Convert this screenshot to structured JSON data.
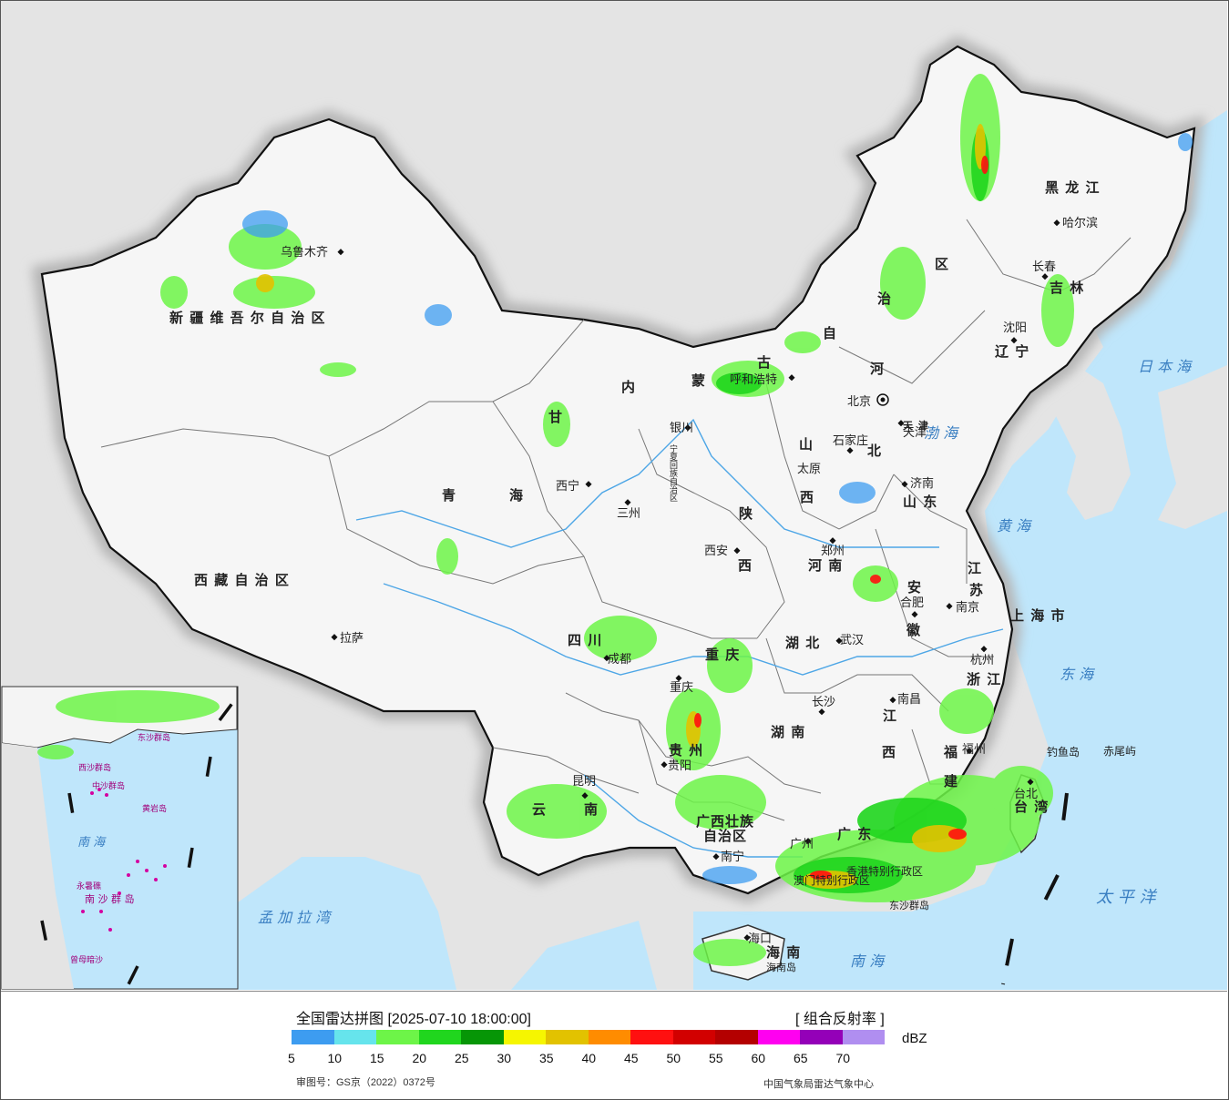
{
  "map": {
    "title": "全国雷达拼图",
    "timestamp": "[2025-07-10 18:00:00]",
    "product": "[ 组合反射率 ]",
    "unit": "dBZ",
    "approval": "审图号：GS京（2022）0372号",
    "agency": "中国气象局雷达气象中心",
    "legend": {
      "colors": [
        "#3d9cf0",
        "#66e4ec",
        "#6df548",
        "#20d61e",
        "#069606",
        "#f6f600",
        "#e2c200",
        "#ff8c00",
        "#ff1010",
        "#d20000",
        "#b40000",
        "#ff00f0",
        "#9400b8",
        "#b08ef0"
      ],
      "ticks": [
        "5",
        "10",
        "15",
        "20",
        "25",
        "30",
        "35",
        "40",
        "45",
        "50",
        "55",
        "60",
        "65",
        "70"
      ]
    },
    "region_labels": {
      "xinjiang": "新 疆 维 吾 尔 自 治 区",
      "xizang": "西 藏 自 治 区",
      "qinghai_1": "青",
      "qinghai_2": "海",
      "gansu": "甘",
      "ningxia": "宁夏回族自治区",
      "neimenggu_1": "内",
      "neimenggu_2": "蒙",
      "neimenggu_3": "古",
      "neimenggu_4": "自",
      "neimenggu_5": "治",
      "neimenggu_6": "区",
      "heilongjiang": "黑 龙 江",
      "jilin": "吉 林",
      "liaoning": "辽 宁",
      "hebei_1": "河",
      "hebei_2": "北",
      "shanxi_1": "山",
      "shanxi_2": "西",
      "shaanxi_1": "陕",
      "shaanxi_2": "西",
      "shandong": "山 东",
      "henan": "河 南",
      "jiangsu_1": "江",
      "jiangsu_2": "苏",
      "anhui_1": "安",
      "anhui_2": "徽",
      "shanghai": "上 海 市",
      "zhejiang": "浙 江",
      "hubei": "湖 北",
      "sichuan": "四 川",
      "chongqing": "重 庆",
      "guizhou": "贵 州",
      "hunan": "湖 南",
      "jiangxi_1": "江",
      "jiangxi_2": "西",
      "fujian_1": "福",
      "fujian_2": "建",
      "yunnan_1": "云",
      "yunnan_2": "南",
      "guangxi_1": "广西壮族",
      "guangxi_2": "自治区",
      "guangdong": "广 东",
      "taiwan": "台 湾",
      "hainan": "海 南",
      "hongkong": "香港特别行政区",
      "macau": "澳门特别行政区",
      "tianjin": "天 津",
      "gansu_city": "甘",
      "sanzhou": "三 州"
    },
    "cities": {
      "urumqi": "乌鲁木齐",
      "lhasa": "拉萨",
      "xining": "西宁",
      "lanzhou": "三州",
      "yinchuan": "银川",
      "huhehaote": "呼和浩特",
      "beijing": "北京",
      "tianjin": "天津",
      "shijiazhuang": "石家庄",
      "taiyuan": "太原",
      "jinan": "济南",
      "zhengzhou": "郑州",
      "xian": "西安",
      "harbin": "哈尔滨",
      "changchun": "长春",
      "shenyang": "沈阳",
      "nanjing": "南京",
      "hefei": "合肥",
      "wuhan": "武汉",
      "hangzhou": "杭州",
      "chengdu": "成都",
      "chongqing": "重庆",
      "changsha": "长沙",
      "nanchang": "南昌",
      "guiyang": "贵阳",
      "fuzhou": "福州",
      "kunming": "昆明",
      "nanning": "南宁",
      "guangzhou": "广州",
      "taibei": "台北",
      "haikou": "海口",
      "haikou_island": "海南岛",
      "diaoyu": "钓鱼岛",
      "chiwei": "赤尾屿",
      "dongsha": "东沙群岛"
    },
    "seas": {
      "bohai": "渤 海",
      "huanghai": "黄 海",
      "donghai": "东 海",
      "nanhai": "南 海",
      "taipingyang": "太 平 洋",
      "ribenhai": "日 本 海",
      "mengjialawan": "孟 加 拉 湾"
    },
    "inset": {
      "nanhai": "南 海",
      "zhongsha": "中沙群岛",
      "yongxing": "永暑礁",
      "nansha": "南 沙 群 岛",
      "zengmu": "曾母暗沙",
      "huangyan": "黄岩岛",
      "xisha": "西沙群岛",
      "dongsha_inset": "东沙群岛"
    }
  }
}
